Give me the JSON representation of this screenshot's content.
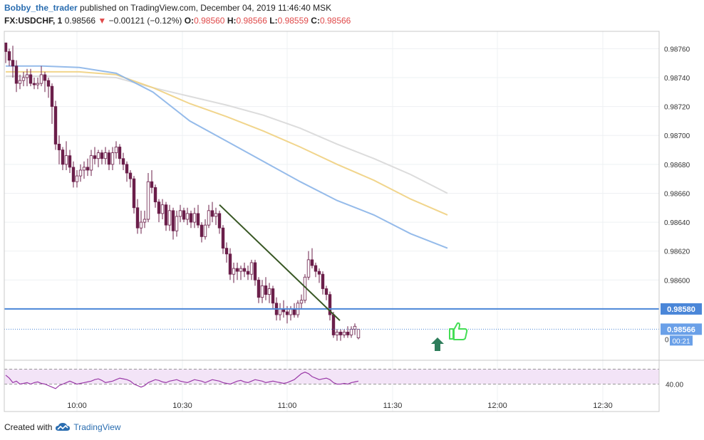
{
  "header": {
    "author": "Bobby_the_trader",
    "published": "published on TradingView.com, December 04, 2019 11:46:40 MSK",
    "symbol": "FX:USDCHF, 1",
    "last": "0.98566",
    "change_arrow": "▼",
    "change": "−0.00121 (−0.12%)",
    "o_label": "O:",
    "o": "0.98560",
    "h_label": "H:",
    "h": "0.98566",
    "l_label": "L:",
    "l": "0.98559",
    "c_label": "C:",
    "c": "0.98566"
  },
  "footer": {
    "created_with": "Created with",
    "brand": "TradingView",
    "logo_icon": "tradingview-cloud-icon"
  },
  "colors": {
    "ema_blue": "#8ab4e8",
    "ema_yellow": "#f0d080",
    "ema_gray": "#d8d8d8",
    "candle": "#6b1f4a",
    "trendline": "#375623",
    "support": "#4a86d8",
    "price_label": "#4a86d8",
    "rsi": "#9a3aa8",
    "rsi_band": "#f3e4f7",
    "arrow": "#2e7d5b",
    "thumb": "#44dd55"
  },
  "chart_data": {
    "type": "candlestick",
    "x_ticks": [
      "10:00",
      "10:30",
      "11:00",
      "11:30",
      "12:00",
      "12:30"
    ],
    "y_ticks": [
      "0.98760",
      "0.98740",
      "0.98720",
      "0.98700",
      "0.98680",
      "0.98660",
      "0.98640",
      "0.98620",
      "0.98600"
    ],
    "ylim": [
      0.98545,
      0.98772
    ],
    "support_level": 0.9858,
    "support_label": "0.98580",
    "last_price": 0.98566,
    "last_price_label": "0.98566",
    "countdown": "00:21",
    "hidden_tick": "0",
    "candles_ohlc": [
      [
        0.98764,
        0.98764,
        0.9875,
        0.98758
      ],
      [
        0.98758,
        0.9876,
        0.98748,
        0.98752
      ],
      [
        0.98752,
        0.98762,
        0.9874,
        0.98748
      ],
      [
        0.98748,
        0.98752,
        0.9873,
        0.98736
      ],
      [
        0.98736,
        0.98742,
        0.98732,
        0.98738
      ],
      [
        0.98738,
        0.98744,
        0.98734,
        0.9874
      ],
      [
        0.9874,
        0.98746,
        0.98734,
        0.98742
      ],
      [
        0.98742,
        0.98746,
        0.98734,
        0.98736
      ],
      [
        0.98736,
        0.9874,
        0.98732,
        0.98735
      ],
      [
        0.98735,
        0.9874,
        0.98732,
        0.98736
      ],
      [
        0.98736,
        0.98748,
        0.98734,
        0.98742
      ],
      [
        0.98742,
        0.98744,
        0.9873,
        0.98738
      ],
      [
        0.98738,
        0.9874,
        0.98726,
        0.98734
      ],
      [
        0.98734,
        0.98736,
        0.98708,
        0.9872
      ],
      [
        0.9872,
        0.98724,
        0.9869,
        0.98694
      ],
      [
        0.98694,
        0.987,
        0.9868,
        0.9869
      ],
      [
        0.9869,
        0.98692,
        0.98676,
        0.9868
      ],
      [
        0.9868,
        0.98696,
        0.98676,
        0.98686
      ],
      [
        0.98686,
        0.9869,
        0.98674,
        0.98678
      ],
      [
        0.98678,
        0.98682,
        0.98664,
        0.98668
      ],
      [
        0.98668,
        0.98676,
        0.98664,
        0.98672
      ],
      [
        0.98672,
        0.9868,
        0.98668,
        0.98676
      ],
      [
        0.98676,
        0.98682,
        0.9867,
        0.98678
      ],
      [
        0.98678,
        0.98684,
        0.98672,
        0.98676
      ],
      [
        0.98676,
        0.9869,
        0.98672,
        0.98686
      ],
      [
        0.98686,
        0.98692,
        0.9868,
        0.98684
      ],
      [
        0.98684,
        0.9869,
        0.98678,
        0.98688
      ],
      [
        0.98688,
        0.9869,
        0.9868,
        0.98684
      ],
      [
        0.98684,
        0.98692,
        0.9868,
        0.98688
      ],
      [
        0.98688,
        0.9869,
        0.98676,
        0.9868
      ],
      [
        0.9868,
        0.98692,
        0.98676,
        0.98688
      ],
      [
        0.98688,
        0.98696,
        0.98684,
        0.98692
      ],
      [
        0.98692,
        0.98694,
        0.9868,
        0.98684
      ],
      [
        0.98684,
        0.98688,
        0.98676,
        0.9868
      ],
      [
        0.9868,
        0.98682,
        0.98668,
        0.98674
      ],
      [
        0.98674,
        0.98676,
        0.98664,
        0.9867
      ],
      [
        0.9867,
        0.98672,
        0.98646,
        0.9865
      ],
      [
        0.9865,
        0.98656,
        0.98632,
        0.98636
      ],
      [
        0.98636,
        0.98648,
        0.98632,
        0.9864
      ],
      [
        0.9864,
        0.98648,
        0.98636,
        0.98642
      ],
      [
        0.98642,
        0.98674,
        0.9864,
        0.98668
      ],
      [
        0.98668,
        0.98676,
        0.9866,
        0.98664
      ],
      [
        0.98664,
        0.98666,
        0.9865,
        0.98654
      ],
      [
        0.98654,
        0.98656,
        0.9864,
        0.98646
      ],
      [
        0.98646,
        0.98656,
        0.98642,
        0.98652
      ],
      [
        0.98652,
        0.98654,
        0.98634,
        0.98638
      ],
      [
        0.98638,
        0.98652,
        0.98634,
        0.98648
      ],
      [
        0.98648,
        0.9865,
        0.98628,
        0.98634
      ],
      [
        0.98634,
        0.98648,
        0.9863,
        0.98644
      ],
      [
        0.98644,
        0.98652,
        0.9864,
        0.98648
      ],
      [
        0.98648,
        0.9865,
        0.9864,
        0.98642
      ],
      [
        0.98642,
        0.9865,
        0.98638,
        0.98646
      ],
      [
        0.98646,
        0.98648,
        0.98636,
        0.9864
      ],
      [
        0.9864,
        0.9865,
        0.98636,
        0.98646
      ],
      [
        0.98646,
        0.98652,
        0.98636,
        0.98638
      ],
      [
        0.98638,
        0.9864,
        0.98626,
        0.9863
      ],
      [
        0.9863,
        0.98642,
        0.98628,
        0.98638
      ],
      [
        0.98638,
        0.98652,
        0.98636,
        0.98648
      ],
      [
        0.98648,
        0.98654,
        0.9864,
        0.98644
      ],
      [
        0.98644,
        0.9865,
        0.98638,
        0.98646
      ],
      [
        0.98646,
        0.98648,
        0.98632,
        0.98636
      ],
      [
        0.98636,
        0.98638,
        0.98618,
        0.98622
      ],
      [
        0.98622,
        0.98626,
        0.98612,
        0.98618
      ],
      [
        0.98618,
        0.98622,
        0.986,
        0.98604
      ],
      [
        0.98604,
        0.98612,
        0.98598,
        0.98608
      ],
      [
        0.98608,
        0.98612,
        0.986,
        0.98606
      ],
      [
        0.98606,
        0.9861,
        0.986,
        0.98608
      ],
      [
        0.98608,
        0.98612,
        0.98602,
        0.98606
      ],
      [
        0.98606,
        0.9861,
        0.986,
        0.98604
      ],
      [
        0.98604,
        0.98614,
        0.986,
        0.98612
      ],
      [
        0.98612,
        0.98614,
        0.98596,
        0.986
      ],
      [
        0.986,
        0.98602,
        0.98584,
        0.98588
      ],
      [
        0.98588,
        0.986,
        0.98584,
        0.98596
      ],
      [
        0.98596,
        0.98602,
        0.98586,
        0.9859
      ],
      [
        0.9859,
        0.98598,
        0.98584,
        0.98594
      ],
      [
        0.98594,
        0.98596,
        0.9858,
        0.98584
      ],
      [
        0.98584,
        0.98588,
        0.98572,
        0.98576
      ],
      [
        0.98576,
        0.98584,
        0.98572,
        0.9858
      ],
      [
        0.9858,
        0.98586,
        0.98574,
        0.98578
      ],
      [
        0.98578,
        0.98582,
        0.9857,
        0.98576
      ],
      [
        0.98576,
        0.98582,
        0.98572,
        0.9858
      ],
      [
        0.9858,
        0.98584,
        0.98574,
        0.98576
      ],
      [
        0.98576,
        0.98586,
        0.98574,
        0.98584
      ],
      [
        0.98584,
        0.9859,
        0.9858,
        0.98586
      ],
      [
        0.98586,
        0.98604,
        0.98584,
        0.98602
      ],
      [
        0.98602,
        0.9862,
        0.986,
        0.98614
      ],
      [
        0.98614,
        0.98622,
        0.98608,
        0.9861
      ],
      [
        0.9861,
        0.98612,
        0.98602,
        0.98606
      ],
      [
        0.98606,
        0.98608,
        0.98598,
        0.98604
      ],
      [
        0.98604,
        0.98606,
        0.9859,
        0.98594
      ],
      [
        0.98594,
        0.98596,
        0.98586,
        0.9859
      ],
      [
        0.9859,
        0.98592,
        0.98572,
        0.98576
      ],
      [
        0.98576,
        0.98578,
        0.9856,
        0.98562
      ],
      [
        0.98562,
        0.98566,
        0.98558,
        0.98564
      ],
      [
        0.98564,
        0.98566,
        0.98558,
        0.98562
      ],
      [
        0.98562,
        0.98566,
        0.9856,
        0.98564
      ],
      [
        0.98564,
        0.98568,
        0.9856,
        0.98562
      ],
      [
        0.98562,
        0.98568,
        0.9856,
        0.98566
      ],
      [
        0.98566,
        0.9857,
        0.98562,
        0.98568
      ],
      [
        0.9856,
        0.98566,
        0.98559,
        0.98566
      ]
    ],
    "ema_blue": [
      0.98748,
      0.98748,
      0.98747,
      0.98743,
      0.9873,
      0.9871,
      0.98696,
      0.98682,
      0.98668,
      0.98655,
      0.98645,
      0.98632,
      0.98622
    ],
    "ema_yellow": [
      0.98744,
      0.98744,
      0.98744,
      0.98742,
      0.98733,
      0.98722,
      0.98713,
      0.98703,
      0.98692,
      0.9868,
      0.98669,
      0.98656,
      0.98645
    ],
    "ema_gray": [
      0.98741,
      0.98741,
      0.98741,
      0.9874,
      0.98733,
      0.98727,
      0.98721,
      0.98714,
      0.98705,
      0.98694,
      0.98684,
      0.98673,
      0.9866
    ],
    "trendline": {
      "from_candle": 60,
      "from_value": 0.98652,
      "to_candle": 93,
      "to_value": 0.98572
    },
    "rsi": {
      "label": "40.00",
      "upper_band": 60,
      "lower_band": 40,
      "ylim": [
        30,
        70
      ],
      "values": [
        52,
        48,
        42,
        44,
        40,
        41,
        42,
        40,
        42,
        43,
        41,
        40,
        38,
        36,
        34,
        38,
        40,
        42,
        44,
        42,
        40,
        41,
        42,
        43,
        44,
        46,
        47,
        45,
        42,
        43,
        44,
        46,
        48,
        47,
        46,
        44,
        40,
        38,
        36,
        38,
        42,
        44,
        46,
        45,
        43,
        42,
        44,
        45,
        46,
        44,
        43,
        42,
        44,
        46,
        45,
        44,
        42,
        44,
        46,
        45,
        44,
        42,
        41,
        40,
        42,
        44,
        45,
        43,
        42,
        44,
        46,
        45,
        44,
        42,
        43,
        44,
        43,
        42,
        41,
        42,
        44,
        46,
        50,
        54,
        56,
        54,
        50,
        48,
        46,
        47,
        48,
        46,
        42,
        40,
        40,
        41,
        40,
        42,
        43,
        44
      ]
    }
  }
}
